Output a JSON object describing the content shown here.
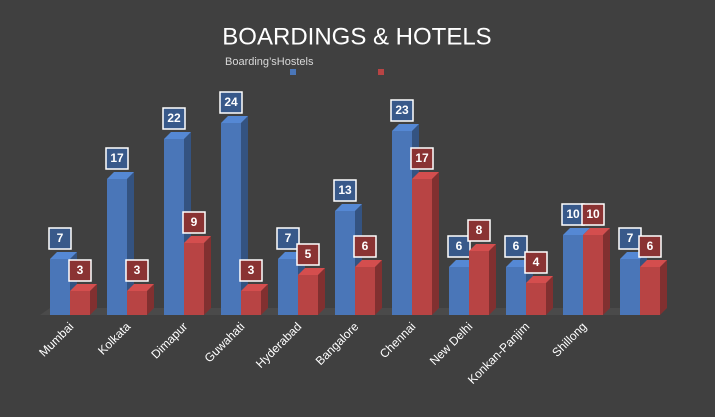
{
  "chart_data": {
    "type": "bar3d",
    "title": "BOARDINGS & HOTELS",
    "categories": [
      "Mumbai",
      "Kolkata",
      "Dimapur",
      "Guwahati",
      "Hyderabad",
      "Bangalore",
      "Chennai",
      "New Delhi",
      "Konkan-Panjim",
      "Shillong",
      null
    ],
    "series": [
      {
        "name": "Boarding’s",
        "color": "#4a76b8",
        "values": [
          7,
          17,
          22,
          24,
          7,
          13,
          23,
          6,
          6,
          10,
          7
        ]
      },
      {
        "name": "Hostels",
        "color": "#b84444",
        "values": [
          3,
          3,
          9,
          3,
          5,
          6,
          17,
          8,
          4,
          10,
          6
        ]
      }
    ],
    "legend": "top",
    "data_labels": true
  }
}
